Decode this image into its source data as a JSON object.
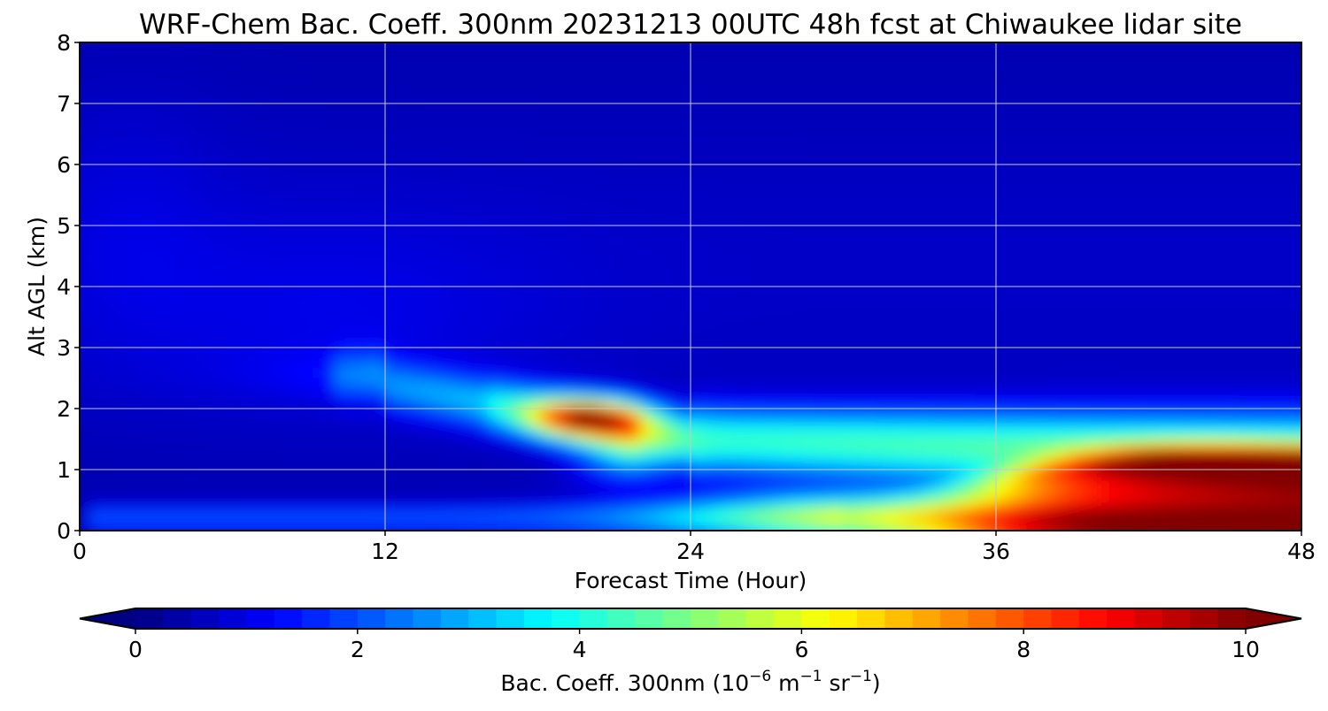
{
  "chart_data": {
    "type": "heatmap",
    "title": "WRF-Chem Bac. Coeff. 300nm  20231213 00UTC 48h fcst at Chiwaukee lidar site",
    "xlabel": "Forecast Time (Hour)",
    "ylabel": "Alt AGL (km)",
    "xlim": [
      0,
      48
    ],
    "ylim": [
      0,
      8
    ],
    "x_ticks": [
      "0",
      "12",
      "24",
      "36",
      "48"
    ],
    "y_ticks": [
      "0",
      "1",
      "2",
      "3",
      "4",
      "5",
      "6",
      "7",
      "8"
    ],
    "grid": true,
    "colormap": "jet",
    "colorbar": {
      "label_main": "Bac. Coeff. 300nm  (10",
      "label_exp1": "−6",
      "label_mid": " m",
      "label_exp2": "−1",
      "label_mid2": " sr",
      "label_exp3": "−1",
      "label_end": ")",
      "range": [
        0,
        10
      ],
      "ticks": [
        "0",
        "2",
        "4",
        "6",
        "8",
        "10"
      ],
      "extend": "both"
    },
    "features": [
      {
        "name": "background aloft",
        "x_range": [
          0,
          48
        ],
        "z_range": [
          3,
          8
        ],
        "value_range": [
          0.3,
          1.0
        ]
      },
      {
        "name": "near-surface layer",
        "x_range": [
          0,
          24
        ],
        "z_range": [
          0,
          0.4
        ],
        "value_range": [
          1.5,
          2.5
        ]
      },
      {
        "name": "descending plume",
        "x_start": 10,
        "z_start": 2.5,
        "x_end": 48,
        "z_end": 1.2,
        "value_range": [
          2,
          6
        ]
      },
      {
        "name": "plume peak",
        "x": 20,
        "z": 1.9,
        "value": 8.5
      },
      {
        "name": "boundary layer max",
        "x_range": [
          36,
          48
        ],
        "z_range": [
          0,
          1.2
        ],
        "value": 10
      }
    ]
  }
}
